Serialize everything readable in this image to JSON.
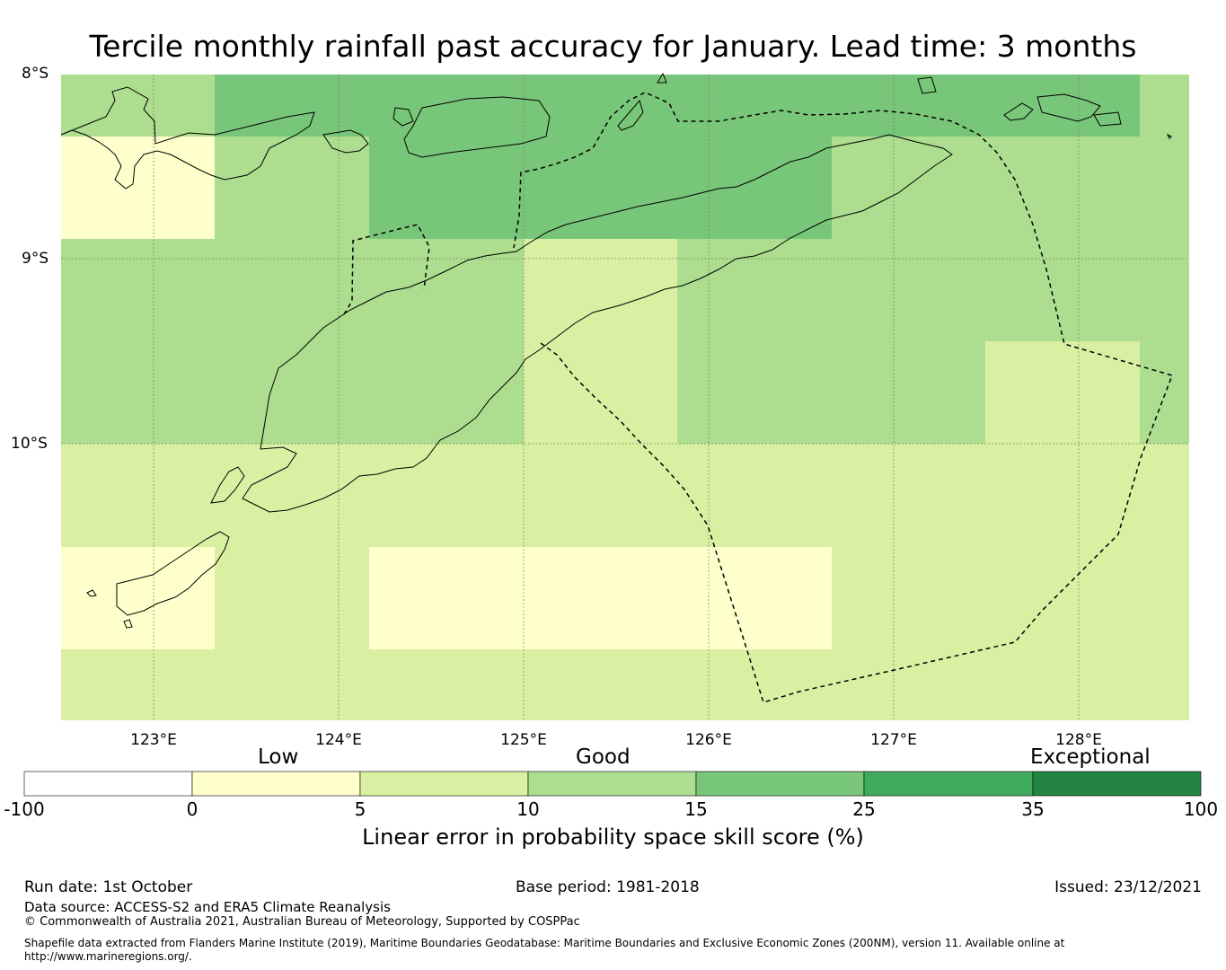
{
  "title": "Tercile monthly rainfall past accuracy for January. Lead time: 3 months",
  "map": {
    "lat_labels": [
      "8°S",
      "9°S",
      "10°S"
    ],
    "lon_labels": [
      "123°E",
      "124°E",
      "125°E",
      "126°E",
      "127°E",
      "128°E"
    ],
    "extent": {
      "lon_min": 122.5,
      "lon_max": 128.6,
      "lat_min": -11.5,
      "lat_max": -8.0
    },
    "colors": {
      "neg": "#ffffff",
      "c0_5": "#ffffcc",
      "c5_10": "#d9f0a3",
      "c10_15": "#addd8e",
      "c15_25": "#78c679",
      "c25_35": "#41ab5d",
      "c35_100": "#238443"
    },
    "cell_grid_note": "tercile skill categories per grid cell",
    "cells": [
      [
        "c10_15",
        "c15_25",
        "c15_25",
        "c15_25",
        "c15_25",
        "c15_25",
        "c15_25",
        "c10_15"
      ],
      [
        "c0_5",
        "c10_15",
        "c15_25",
        "c15_25",
        "c15_25",
        "c10_15",
        "c10_15",
        "c10_15"
      ],
      [
        "c10_15",
        "c10_15",
        "c10_15",
        "c5_10",
        "c10_15",
        "c10_15",
        "c10_15",
        "c10_15"
      ],
      [
        "c10_15",
        "c10_15",
        "c10_15",
        "c5_10",
        "c10_15",
        "c10_15",
        "c5_10",
        "c10_15"
      ],
      [
        "c5_10",
        "c5_10",
        "c5_10",
        "c5_10",
        "c5_10",
        "c5_10",
        "c5_10",
        "c5_10"
      ],
      [
        "c0_5",
        "c5_10",
        "c0_5",
        "c0_5",
        "c0_5",
        "c5_10",
        "c5_10",
        "c5_10"
      ],
      [
        "c5_10",
        "c5_10",
        "c5_10",
        "c5_10",
        "c5_10",
        "c5_10",
        "c5_10",
        "c5_10"
      ]
    ]
  },
  "legend": {
    "categories": [
      "Low",
      "Good",
      "Exceptional"
    ],
    "ticks": [
      "-100",
      "0",
      "5",
      "10",
      "15",
      "25",
      "35",
      "100"
    ],
    "label": "Linear error in probability space skill score (%)"
  },
  "footer": {
    "run_date": "Run date: 1st October",
    "base_period": "Base period: 1981-2018",
    "issued": "Issued: 23/12/2021",
    "data_source": "Data source: ACCESS-S2 and ERA5 Climate Reanalysis",
    "copyright": "© Commonwealth of Australia 2021, Australian Bureau of Meteorology, Supported by COSPPac",
    "shapefile_line1": "Shapefile data extracted from Flanders Marine Institute (2019), Maritime Boundaries Geodatabase: Maritime Boundaries and Exclusive Economic Zones (200NM), version 11. Available online at",
    "shapefile_line2": "http://www.marineregions.org/."
  }
}
